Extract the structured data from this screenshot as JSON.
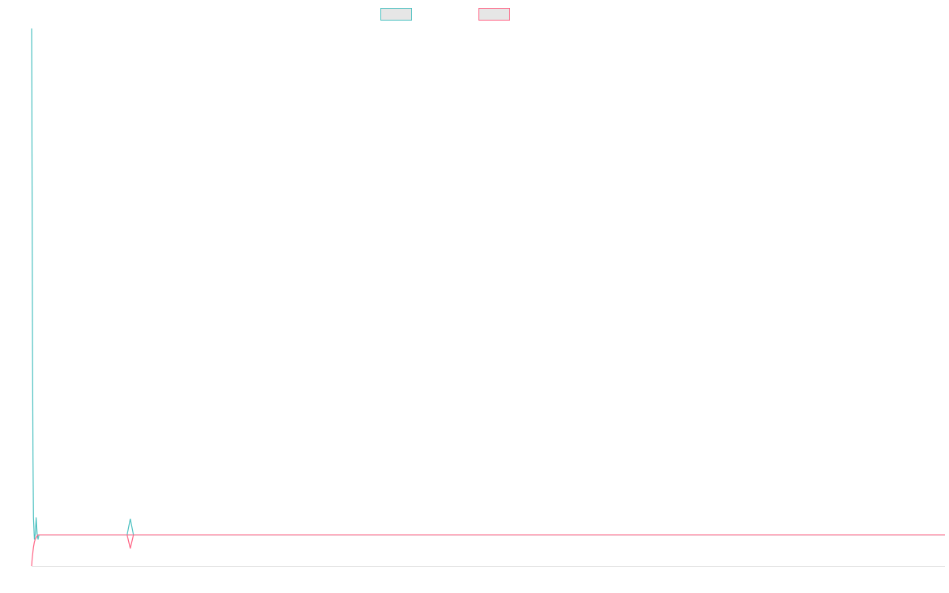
{
  "chart_data": {
    "type": "line",
    "title": "",
    "xlabel": "",
    "ylabel": "",
    "legend_position": "top-center",
    "grid": false,
    "x": [
      0,
      0.2,
      0.5,
      1,
      1.5,
      2,
      2.5,
      3,
      4,
      5,
      6,
      7,
      8,
      9,
      10,
      11,
      12,
      13,
      14,
      15,
      16,
      17,
      18,
      19,
      20,
      21,
      22,
      23,
      24,
      25,
      26,
      27,
      28,
      29,
      30,
      40,
      60,
      80,
      100,
      120,
      140,
      160,
      180,
      200,
      220,
      240,
      260,
      280,
      300,
      320,
      340,
      360,
      380,
      400,
      420,
      440,
      460,
      480,
      500,
      520,
      540,
      560,
      580,
      600,
      620,
      640,
      660,
      680,
      700,
      720,
      740,
      760,
      780,
      800,
      820,
      840,
      860,
      880,
      900,
      920,
      940,
      960,
      980,
      1000
    ],
    "xlim": [
      0,
      1000
    ],
    "ylim": [
      0,
      1
    ],
    "series": [
      {
        "name": "",
        "color": "#4bc0c0",
        "fill": "#e6e6e6",
        "values": [
          1.0,
          0.9,
          0.7,
          0.4,
          0.2,
          0.09,
          0.07,
          0.05,
          0.06,
          0.09,
          0.06,
          0.05,
          0.058,
          0.058,
          0.058,
          0.058,
          0.058,
          0.058,
          0.058,
          0.058,
          0.058,
          0.058,
          0.058,
          0.058,
          0.058,
          0.058,
          0.058,
          0.058,
          0.058,
          0.058,
          0.058,
          0.058,
          0.058,
          0.058,
          0.058,
          0.058,
          0.058,
          0.058,
          0.058,
          0.058,
          0.058,
          0.058,
          0.058,
          0.058,
          0.058,
          0.058,
          0.058,
          0.058,
          0.058,
          0.058,
          0.058,
          0.058,
          0.058,
          0.058,
          0.058,
          0.058,
          0.058,
          0.058,
          0.058,
          0.058,
          0.058,
          0.058,
          0.058,
          0.058,
          0.058,
          0.058,
          0.058,
          0.058,
          0.058,
          0.058,
          0.058,
          0.058,
          0.058,
          0.058,
          0.058,
          0.058,
          0.058,
          0.058,
          0.058,
          0.058,
          0.058,
          0.058,
          0.058,
          0.058
        ]
      },
      {
        "name": "",
        "color": "#ff6384",
        "fill": "#e6e6e6",
        "values": [
          0.0,
          0.005,
          0.012,
          0.02,
          0.028,
          0.035,
          0.04,
          0.045,
          0.05,
          0.053,
          0.056,
          0.058,
          0.058,
          0.058,
          0.058,
          0.058,
          0.058,
          0.058,
          0.058,
          0.058,
          0.058,
          0.058,
          0.058,
          0.058,
          0.058,
          0.058,
          0.058,
          0.058,
          0.058,
          0.058,
          0.058,
          0.058,
          0.058,
          0.058,
          0.058,
          0.058,
          0.058,
          0.058,
          0.058,
          0.058,
          0.058,
          0.058,
          0.058,
          0.058,
          0.058,
          0.058,
          0.058,
          0.058,
          0.058,
          0.058,
          0.058,
          0.058,
          0.058,
          0.058,
          0.058,
          0.058,
          0.058,
          0.058,
          0.058,
          0.058,
          0.058,
          0.058,
          0.058,
          0.058,
          0.058,
          0.058,
          0.058,
          0.058,
          0.058,
          0.058,
          0.058,
          0.058,
          0.058,
          0.058,
          0.058,
          0.058,
          0.058,
          0.058,
          0.058,
          0.058,
          0.058,
          0.058,
          0.058,
          0.058
        ]
      }
    ],
    "spike": {
      "x": 108,
      "up": 0.088,
      "down": 0.033,
      "base": 0.058
    }
  }
}
